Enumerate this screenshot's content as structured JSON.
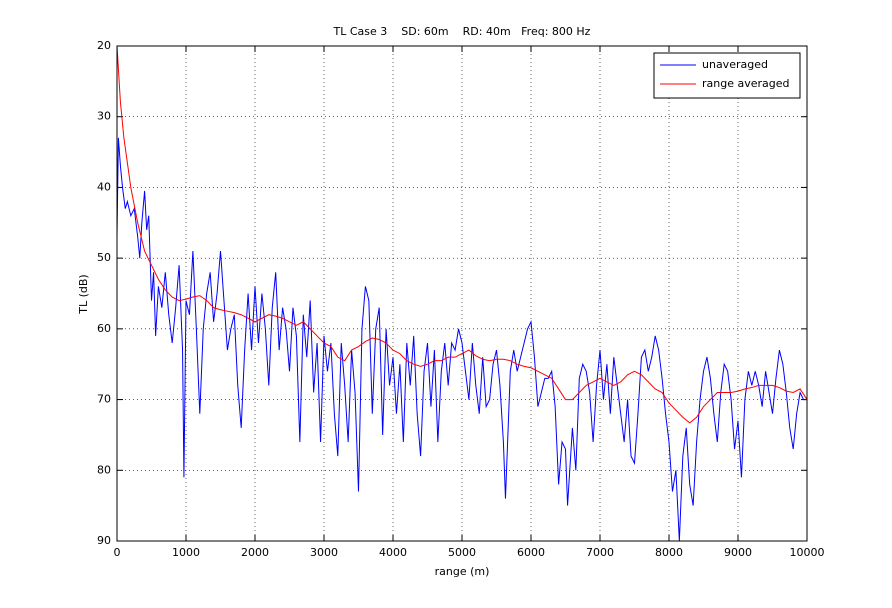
{
  "chart_data": {
    "type": "line",
    "title": "TL Case 3    SD: 60m    RD: 40m   Freq: 800 Hz",
    "xlabel": "range (m)",
    "ylabel": "TL (dB)",
    "xlim": [
      0,
      10000
    ],
    "ylim": [
      20,
      90
    ],
    "yreverse": true,
    "xticks": [
      0,
      1000,
      2000,
      3000,
      4000,
      5000,
      6000,
      7000,
      8000,
      9000,
      10000
    ],
    "yticks": [
      20,
      30,
      40,
      50,
      60,
      70,
      80,
      90
    ],
    "grid": true,
    "legend": "upper right",
    "series": [
      {
        "name": "unaveraged",
        "color": "#0000ff",
        "x": [
          0,
          20,
          50,
          80,
          120,
          150,
          200,
          250,
          300,
          330,
          360,
          400,
          430,
          460,
          500,
          530,
          560,
          600,
          650,
          700,
          750,
          800,
          850,
          900,
          950,
          970,
          1000,
          1050,
          1100,
          1150,
          1200,
          1250,
          1300,
          1350,
          1400,
          1450,
          1500,
          1550,
          1600,
          1650,
          1700,
          1750,
          1800,
          1850,
          1900,
          1950,
          2000,
          2050,
          2100,
          2150,
          2200,
          2250,
          2300,
          2350,
          2400,
          2450,
          2500,
          2550,
          2600,
          2650,
          2700,
          2750,
          2800,
          2850,
          2900,
          2950,
          3000,
          3050,
          3100,
          3150,
          3200,
          3250,
          3300,
          3350,
          3400,
          3450,
          3500,
          3550,
          3600,
          3650,
          3700,
          3750,
          3800,
          3850,
          3900,
          3950,
          4000,
          4050,
          4100,
          4150,
          4200,
          4250,
          4300,
          4350,
          4400,
          4450,
          4500,
          4550,
          4600,
          4650,
          4700,
          4750,
          4800,
          4850,
          4900,
          4950,
          5000,
          5050,
          5100,
          5150,
          5200,
          5250,
          5300,
          5350,
          5400,
          5450,
          5500,
          5550,
          5600,
          5630,
          5700,
          5750,
          5800,
          5850,
          5900,
          5950,
          6000,
          6050,
          6100,
          6150,
          6200,
          6250,
          6300,
          6350,
          6400,
          6450,
          6500,
          6530,
          6600,
          6650,
          6700,
          6750,
          6800,
          6850,
          6900,
          6950,
          7000,
          7050,
          7100,
          7150,
          7200,
          7250,
          7300,
          7350,
          7400,
          7450,
          7500,
          7550,
          7600,
          7650,
          7700,
          7750,
          7800,
          7850,
          7900,
          7950,
          8000,
          8050,
          8100,
          8150,
          8200,
          8250,
          8300,
          8350,
          8400,
          8450,
          8500,
          8550,
          8600,
          8650,
          8700,
          8750,
          8800,
          8850,
          8900,
          8950,
          9000,
          9050,
          9100,
          9150,
          9200,
          9250,
          9300,
          9350,
          9400,
          9450,
          9500,
          9550,
          9600,
          9650,
          9700,
          9750,
          9800,
          9850,
          9900,
          9950,
          10000
        ],
        "values": [
          47,
          33,
          37,
          40,
          43,
          42,
          44,
          43,
          47,
          50,
          45,
          40.5,
          46,
          44,
          56,
          52,
          61,
          54,
          57,
          52,
          58,
          62,
          57,
          51,
          63,
          81,
          56,
          58,
          49,
          60,
          72,
          60,
          55,
          52,
          59,
          55,
          49,
          56,
          63,
          60,
          58,
          68,
          74,
          63,
          55,
          63,
          54,
          62,
          55,
          60,
          68,
          57,
          52,
          63,
          57,
          60,
          66,
          57,
          61,
          76,
          58,
          64,
          56,
          69,
          62,
          76,
          61,
          66,
          62,
          72,
          78,
          62,
          68,
          76,
          63,
          69,
          83,
          60,
          54,
          56,
          72,
          60,
          57,
          75,
          60,
          68,
          64,
          72,
          65,
          76,
          62,
          68,
          61,
          72,
          78,
          66,
          62,
          71,
          63,
          76,
          66,
          62,
          68,
          62,
          63,
          60,
          62,
          66,
          70,
          62,
          68,
          72,
          64,
          71,
          70,
          65,
          63,
          68,
          76,
          84,
          66,
          63,
          66,
          64,
          62,
          60,
          59,
          64,
          71,
          69,
          67,
          67,
          66,
          71,
          82,
          76,
          77,
          85,
          74,
          80,
          67,
          65,
          66,
          69,
          76,
          68,
          63,
          70,
          65,
          72,
          64,
          68,
          72,
          76,
          70,
          78,
          79,
          72,
          64,
          63,
          66,
          64,
          61,
          63,
          67,
          72,
          76,
          83,
          80,
          90,
          78,
          74,
          82,
          85,
          76,
          70,
          66,
          64,
          67,
          72,
          76,
          69,
          65,
          66,
          70,
          77,
          73,
          81,
          70,
          66,
          68,
          66,
          68,
          71,
          66,
          69,
          72,
          67,
          63,
          65,
          69,
          74,
          77,
          72,
          69,
          70,
          70
        ]
      },
      {
        "name": "range averaged",
        "color": "#ff0000",
        "x": [
          0,
          50,
          100,
          200,
          300,
          400,
          500,
          600,
          700,
          800,
          900,
          1000,
          1100,
          1200,
          1300,
          1400,
          1500,
          1600,
          1700,
          1800,
          1900,
          2000,
          2100,
          2200,
          2300,
          2400,
          2500,
          2600,
          2700,
          2800,
          2900,
          3000,
          3100,
          3200,
          3300,
          3400,
          3500,
          3600,
          3700,
          3800,
          3900,
          4000,
          4100,
          4200,
          4300,
          4400,
          4500,
          4600,
          4700,
          4800,
          4900,
          5000,
          5100,
          5200,
          5300,
          5400,
          5500,
          5600,
          5700,
          5800,
          5900,
          6000,
          6100,
          6200,
          6300,
          6400,
          6500,
          6600,
          6700,
          6800,
          6900,
          7000,
          7100,
          7200,
          7300,
          7400,
          7500,
          7600,
          7700,
          7800,
          7900,
          8000,
          8100,
          8200,
          8300,
          8400,
          8500,
          8600,
          8700,
          8800,
          8900,
          9000,
          9100,
          9200,
          9300,
          9400,
          9500,
          9600,
          9700,
          9800,
          9900,
          10000
        ],
        "values": [
          20,
          28,
          33,
          40,
          45,
          49,
          51,
          53,
          54.5,
          55.5,
          56,
          55.8,
          55.5,
          55.3,
          56,
          57,
          57.3,
          57.5,
          57.7,
          58,
          58.5,
          59,
          58.5,
          58,
          58.2,
          58.5,
          59,
          59.5,
          59,
          60,
          61,
          62,
          62.5,
          64,
          64.5,
          63,
          62.5,
          61.8,
          61.3,
          61.5,
          62,
          63,
          63.5,
          64.5,
          65,
          65.3,
          65,
          64.5,
          64.5,
          64,
          64,
          63.5,
          63,
          63.8,
          64.3,
          64.5,
          64.3,
          64.3,
          64.5,
          65,
          65.3,
          65.5,
          66,
          66.5,
          67,
          68.5,
          70,
          70,
          69,
          68,
          67.5,
          67,
          67.5,
          68,
          67.5,
          66.5,
          66,
          66.5,
          67.5,
          68.5,
          69,
          70.5,
          71.5,
          72.5,
          73.3,
          72.5,
          71,
          70,
          69,
          69,
          69,
          68.8,
          68.5,
          68.3,
          68,
          68,
          68,
          68.3,
          68.8,
          69,
          68.5,
          70
        ]
      }
    ]
  }
}
